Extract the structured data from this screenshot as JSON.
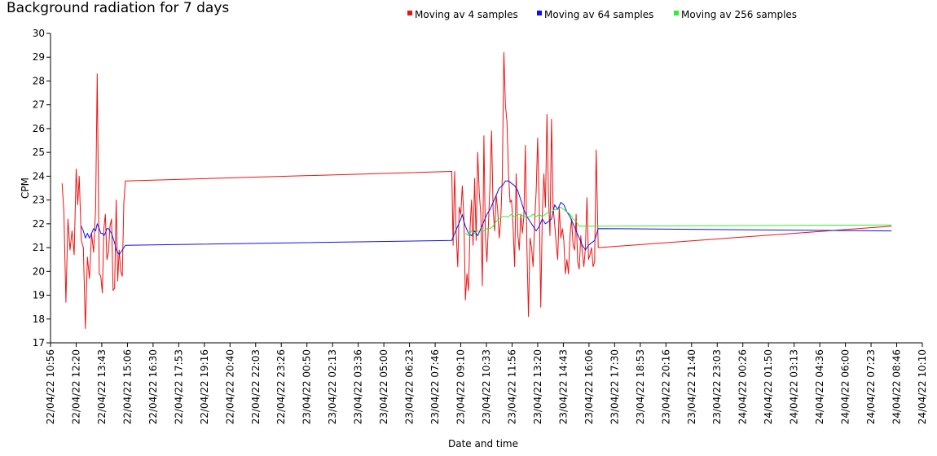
{
  "chart_data": {
    "type": "line",
    "title": "Background radiation for 7 days",
    "xlabel": "Date and time",
    "ylabel": "CPM",
    "ylim": [
      17,
      30
    ],
    "yticks": [
      17,
      18,
      19,
      20,
      21,
      22,
      23,
      24,
      25,
      26,
      27,
      28,
      29,
      30
    ],
    "xticks": [
      "22/04/22 10:56",
      "22/04/22 12:20",
      "22/04/22 13:43",
      "22/04/22 15:06",
      "22/04/22 16:30",
      "22/04/22 17:53",
      "22/04/22 19:16",
      "22/04/22 20:40",
      "22/04/22 22:03",
      "22/04/22 23:26",
      "23/04/22 00:50",
      "23/04/22 02:13",
      "23/04/22 03:36",
      "23/04/22 05:00",
      "23/04/22 06:23",
      "23/04/22 07:46",
      "23/04/22 09:10",
      "23/04/22 10:33",
      "23/04/22 11:56",
      "23/04/22 13:20",
      "23/04/22 14:43",
      "23/04/22 16:06",
      "23/04/22 17:30",
      "23/04/22 18:53",
      "23/04/22 20:16",
      "23/04/22 21:40",
      "23/04/22 23:03",
      "24/04/22 00:26",
      "24/04/22 01:50",
      "24/04/22 03:13",
      "24/04/22 04:36",
      "24/04/22 06:00",
      "24/04/22 07:23",
      "24/04/22 08:46",
      "24/04/22 10:10"
    ],
    "grid": false,
    "legend_position": "top-right",
    "series": [
      {
        "name": "Moving av 4 samples",
        "color": "#ee1111",
        "points": [
          [
            0.45,
            23.7
          ],
          [
            0.52,
            22.5
          ],
          [
            0.6,
            18.7
          ],
          [
            0.68,
            22.2
          ],
          [
            0.76,
            20.9
          ],
          [
            0.84,
            21.7
          ],
          [
            0.92,
            20.7
          ],
          [
            1.0,
            24.3
          ],
          [
            1.06,
            22.8
          ],
          [
            1.12,
            24.0
          ],
          [
            1.2,
            21.3
          ],
          [
            1.28,
            21.0
          ],
          [
            1.36,
            17.6
          ],
          [
            1.44,
            20.6
          ],
          [
            1.52,
            19.7
          ],
          [
            1.6,
            21.6
          ],
          [
            1.68,
            20.8
          ],
          [
            1.76,
            22.7
          ],
          [
            1.82,
            28.3
          ],
          [
            1.9,
            19.9
          ],
          [
            1.96,
            19.8
          ],
          [
            2.02,
            19.1
          ],
          [
            2.08,
            21.8
          ],
          [
            2.14,
            22.4
          ],
          [
            2.2,
            20.5
          ],
          [
            2.26,
            20.8
          ],
          [
            2.32,
            21.9
          ],
          [
            2.38,
            22.2
          ],
          [
            2.44,
            19.2
          ],
          [
            2.5,
            19.3
          ],
          [
            2.56,
            23.0
          ],
          [
            2.62,
            19.6
          ],
          [
            2.68,
            20.9
          ],
          [
            2.74,
            20.0
          ],
          [
            2.8,
            19.8
          ],
          [
            2.86,
            22.9
          ],
          [
            2.92,
            23.8
          ],
          [
            15.65,
            24.2
          ],
          [
            15.7,
            21.1
          ],
          [
            15.76,
            24.2
          ],
          [
            15.82,
            21.6
          ],
          [
            15.88,
            20.2
          ],
          [
            15.94,
            22.7
          ],
          [
            16.0,
            22.4
          ],
          [
            16.06,
            23.6
          ],
          [
            16.12,
            22.3
          ],
          [
            16.18,
            18.8
          ],
          [
            16.24,
            19.9
          ],
          [
            16.3,
            19.2
          ],
          [
            16.36,
            21.8
          ],
          [
            16.42,
            23.0
          ],
          [
            16.48,
            21.1
          ],
          [
            16.54,
            23.9
          ],
          [
            16.6,
            21.3
          ],
          [
            16.66,
            25.0
          ],
          [
            16.72,
            23.3
          ],
          [
            16.78,
            22.4
          ],
          [
            16.84,
            19.4
          ],
          [
            16.9,
            25.7
          ],
          [
            16.96,
            21.5
          ],
          [
            17.02,
            20.4
          ],
          [
            17.08,
            22.0
          ],
          [
            17.14,
            23.7
          ],
          [
            17.2,
            25.9
          ],
          [
            17.26,
            22.6
          ],
          [
            17.32,
            21.7
          ],
          [
            17.38,
            23.2
          ],
          [
            17.44,
            22.6
          ],
          [
            17.5,
            21.4
          ],
          [
            17.56,
            22.2
          ],
          [
            17.62,
            24.0
          ],
          [
            17.68,
            29.2
          ],
          [
            17.74,
            27.0
          ],
          [
            17.8,
            26.3
          ],
          [
            17.86,
            24.1
          ],
          [
            17.92,
            22.9
          ],
          [
            17.98,
            23.0
          ],
          [
            18.04,
            21.9
          ],
          [
            18.1,
            20.2
          ],
          [
            18.16,
            24.1
          ],
          [
            18.22,
            21.6
          ],
          [
            18.28,
            20.9
          ],
          [
            18.34,
            22.4
          ],
          [
            18.4,
            21.6
          ],
          [
            18.46,
            22.3
          ],
          [
            18.52,
            25.3
          ],
          [
            18.58,
            21.0
          ],
          [
            18.64,
            18.1
          ],
          [
            18.7,
            21.4
          ],
          [
            18.76,
            21.0
          ],
          [
            18.82,
            20.2
          ],
          [
            18.88,
            22.1
          ],
          [
            18.94,
            23.4
          ],
          [
            19.0,
            25.6
          ],
          [
            19.06,
            22.8
          ],
          [
            19.12,
            18.5
          ],
          [
            19.18,
            22.4
          ],
          [
            19.24,
            24.1
          ],
          [
            19.3,
            22.7
          ],
          [
            19.36,
            26.6
          ],
          [
            19.42,
            23.1
          ],
          [
            19.48,
            21.5
          ],
          [
            19.54,
            26.4
          ],
          [
            19.6,
            22.7
          ],
          [
            19.66,
            22.0
          ],
          [
            19.72,
            21.2
          ],
          [
            19.78,
            20.5
          ],
          [
            19.84,
            22.7
          ],
          [
            19.9,
            21.4
          ],
          [
            19.96,
            21.8
          ],
          [
            20.02,
            21.3
          ],
          [
            20.08,
            19.9
          ],
          [
            20.14,
            20.5
          ],
          [
            20.2,
            19.9
          ],
          [
            20.26,
            21.5
          ],
          [
            20.32,
            22.2
          ],
          [
            20.38,
            21.1
          ],
          [
            20.44,
            20.9
          ],
          [
            20.5,
            22.4
          ],
          [
            20.56,
            20.4
          ],
          [
            20.62,
            20.1
          ],
          [
            20.68,
            21.5
          ],
          [
            20.74,
            20.8
          ],
          [
            20.8,
            20.2
          ],
          [
            20.86,
            21.0
          ],
          [
            20.92,
            23.1
          ],
          [
            20.98,
            20.5
          ],
          [
            21.04,
            20.7
          ],
          [
            21.1,
            21.0
          ],
          [
            21.16,
            20.2
          ],
          [
            21.22,
            20.4
          ],
          [
            21.28,
            25.1
          ],
          [
            21.36,
            21.0
          ],
          [
            32.8,
            21.9
          ]
        ]
      },
      {
        "name": "Moving av 64 samples",
        "color": "#1111ee",
        "points": [
          [
            1.2,
            21.9
          ],
          [
            1.28,
            21.7
          ],
          [
            1.36,
            21.4
          ],
          [
            1.44,
            21.6
          ],
          [
            1.52,
            21.4
          ],
          [
            1.6,
            21.6
          ],
          [
            1.68,
            21.8
          ],
          [
            1.76,
            21.7
          ],
          [
            1.82,
            22.0
          ],
          [
            1.9,
            21.8
          ],
          [
            1.96,
            21.6
          ],
          [
            2.02,
            21.6
          ],
          [
            2.08,
            21.5
          ],
          [
            2.14,
            21.6
          ],
          [
            2.2,
            21.8
          ],
          [
            2.26,
            21.8
          ],
          [
            2.32,
            21.7
          ],
          [
            2.38,
            21.6
          ],
          [
            2.44,
            21.4
          ],
          [
            2.5,
            21.2
          ],
          [
            2.56,
            20.9
          ],
          [
            2.62,
            20.8
          ],
          [
            2.68,
            20.7
          ],
          [
            2.74,
            20.8
          ],
          [
            2.8,
            20.9
          ],
          [
            2.86,
            21.0
          ],
          [
            2.92,
            21.1
          ],
          [
            15.65,
            21.3
          ],
          [
            15.76,
            21.6
          ],
          [
            15.88,
            21.9
          ],
          [
            16.0,
            22.2
          ],
          [
            16.06,
            22.4
          ],
          [
            16.12,
            22.1
          ],
          [
            16.18,
            21.9
          ],
          [
            16.3,
            21.6
          ],
          [
            16.42,
            21.5
          ],
          [
            16.54,
            21.7
          ],
          [
            16.66,
            21.5
          ],
          [
            16.78,
            21.8
          ],
          [
            16.9,
            22.1
          ],
          [
            17.02,
            22.4
          ],
          [
            17.14,
            22.6
          ],
          [
            17.26,
            22.9
          ],
          [
            17.38,
            23.2
          ],
          [
            17.5,
            23.5
          ],
          [
            17.62,
            23.6
          ],
          [
            17.74,
            23.8
          ],
          [
            17.86,
            23.8
          ],
          [
            17.98,
            23.7
          ],
          [
            18.1,
            23.6
          ],
          [
            18.22,
            23.4
          ],
          [
            18.34,
            23.0
          ],
          [
            18.46,
            22.6
          ],
          [
            18.58,
            22.3
          ],
          [
            18.7,
            22.1
          ],
          [
            18.82,
            21.9
          ],
          [
            18.94,
            21.7
          ],
          [
            19.06,
            21.9
          ],
          [
            19.18,
            22.2
          ],
          [
            19.3,
            22.0
          ],
          [
            19.42,
            22.1
          ],
          [
            19.54,
            22.2
          ],
          [
            19.66,
            22.8
          ],
          [
            19.78,
            22.6
          ],
          [
            19.9,
            22.9
          ],
          [
            20.02,
            22.8
          ],
          [
            20.14,
            22.5
          ],
          [
            20.26,
            22.3
          ],
          [
            20.38,
            22.0
          ],
          [
            20.5,
            21.7
          ],
          [
            20.62,
            21.4
          ],
          [
            20.74,
            21.1
          ],
          [
            20.86,
            20.9
          ],
          [
            20.98,
            21.1
          ],
          [
            21.1,
            21.2
          ],
          [
            21.22,
            21.3
          ],
          [
            21.36,
            21.8
          ],
          [
            32.8,
            21.7
          ]
        ]
      },
      {
        "name": "Moving av 256 samples",
        "color": "#33ee33",
        "points": [
          [
            16.18,
            21.6
          ],
          [
            16.3,
            21.5
          ],
          [
            16.42,
            21.7
          ],
          [
            16.54,
            21.6
          ],
          [
            16.66,
            21.7
          ],
          [
            16.78,
            21.7
          ],
          [
            16.9,
            21.7
          ],
          [
            17.02,
            21.8
          ],
          [
            17.14,
            21.8
          ],
          [
            17.26,
            21.9
          ],
          [
            17.38,
            22.1
          ],
          [
            17.5,
            22.2
          ],
          [
            17.62,
            22.3
          ],
          [
            17.74,
            22.3
          ],
          [
            17.86,
            22.3
          ],
          [
            17.98,
            22.4
          ],
          [
            18.1,
            22.3
          ],
          [
            18.22,
            22.4
          ],
          [
            18.34,
            22.4
          ],
          [
            18.46,
            22.3
          ],
          [
            18.58,
            22.3
          ],
          [
            18.7,
            22.3
          ],
          [
            18.82,
            22.4
          ],
          [
            18.94,
            22.3
          ],
          [
            19.06,
            22.4
          ],
          [
            19.18,
            22.3
          ],
          [
            19.3,
            22.4
          ],
          [
            19.42,
            22.5
          ],
          [
            19.54,
            22.5
          ],
          [
            19.66,
            22.6
          ],
          [
            19.78,
            22.6
          ],
          [
            19.9,
            22.7
          ],
          [
            20.02,
            22.6
          ],
          [
            20.14,
            22.5
          ],
          [
            20.26,
            22.4
          ],
          [
            20.38,
            22.2
          ],
          [
            20.5,
            22.1
          ],
          [
            20.62,
            21.9
          ],
          [
            20.74,
            21.9
          ],
          [
            20.86,
            21.9
          ],
          [
            20.98,
            21.9
          ],
          [
            21.1,
            21.9
          ],
          [
            21.22,
            21.9
          ],
          [
            21.36,
            21.9
          ],
          [
            32.8,
            21.95
          ]
        ]
      }
    ]
  }
}
